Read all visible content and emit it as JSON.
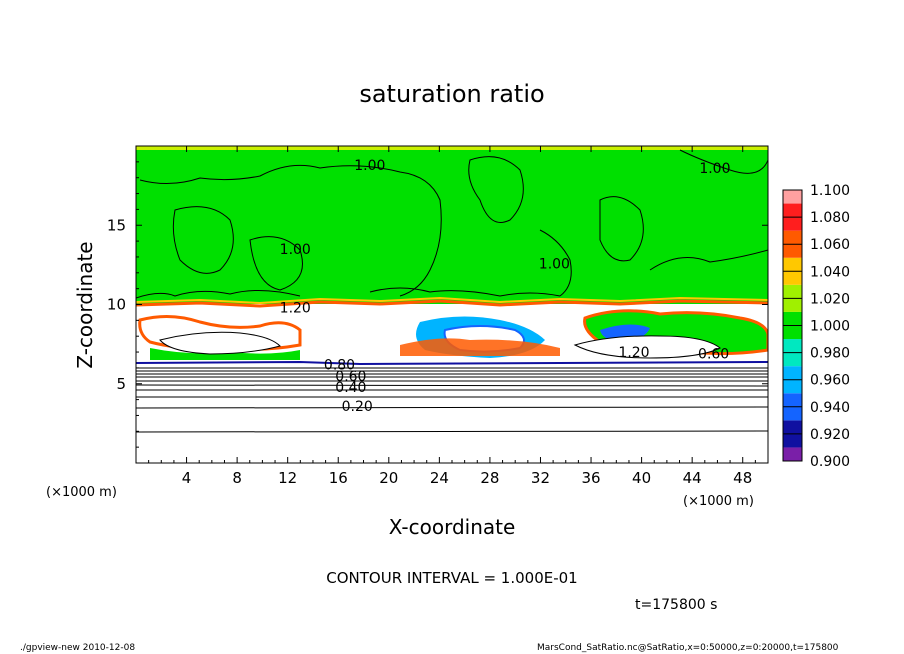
{
  "chart_data": {
    "type": "heatmap",
    "title": "saturation ratio",
    "xlabel": "X-coordinate",
    "ylabel": "Z-coordinate",
    "x_unit": "(×1000 m)",
    "z_unit": "(×1000 m)",
    "xlim": [
      0,
      50
    ],
    "ylim": [
      0,
      20
    ],
    "x_ticks": [
      "4",
      "8",
      "12",
      "16",
      "20",
      "24",
      "28",
      "32",
      "36",
      "40",
      "44",
      "48"
    ],
    "y_ticks": [
      "5",
      "10",
      "15"
    ],
    "colorbar": {
      "levels": [
        "0.900",
        "0.920",
        "0.940",
        "0.960",
        "0.980",
        "1.000",
        "1.020",
        "1.040",
        "1.060",
        "1.080",
        "1.100"
      ],
      "colors": [
        "#7a1fa8",
        "#1010a0",
        "#1464ff",
        "#00b4ff",
        "#00e8c0",
        "#00e000",
        "#a0f000",
        "#ffc800",
        "#ff5a00",
        "#ff1e1e",
        "#ffa0a0"
      ]
    },
    "contour_labels": [
      {
        "text": "1.00",
        "x": 18.5,
        "z": 18.8
      },
      {
        "text": "1.00",
        "x": 45.8,
        "z": 18.6
      },
      {
        "text": "1.00",
        "x": 12.6,
        "z": 13.5
      },
      {
        "text": "1.00",
        "x": 33.1,
        "z": 12.6
      },
      {
        "text": "1.20",
        "x": 12.6,
        "z": 9.8
      },
      {
        "text": "1.20",
        "x": 39.4,
        "z": 7.0
      },
      {
        "text": "0.80",
        "x": 16.1,
        "z": 6.2
      },
      {
        "text": "0.60",
        "x": 17.0,
        "z": 5.5
      },
      {
        "text": "0.40",
        "x": 17.0,
        "z": 4.8
      },
      {
        "text": "0.20",
        "x": 17.5,
        "z": 3.6
      },
      {
        "text": "0.60",
        "x": 45.7,
        "z": 6.9
      }
    ],
    "contour_interval_text": "CONTOUR INTERVAL = 1.000E-01",
    "time_text": "t=175800 s"
  },
  "footer": {
    "left": "./gpview-new   2010-12-08",
    "right": "MarsCond_SatRatio.nc@SatRatio,x=0:50000,z=0:20000,t=175800"
  }
}
